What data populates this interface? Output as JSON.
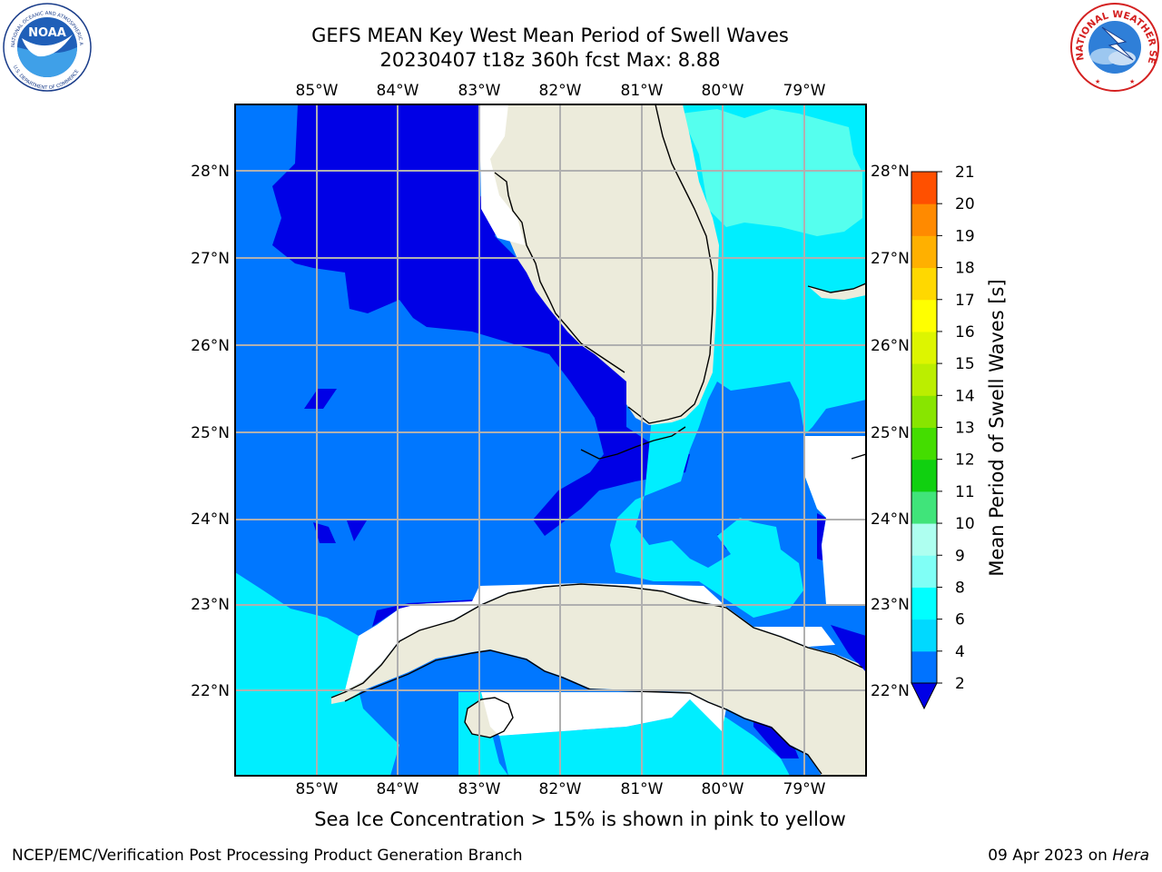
{
  "header": {
    "title_line1": "GEFS MEAN Key West Mean Period of Swell Waves",
    "title_line2": "20230407 t18z 360h fcst   Max: 8.88"
  },
  "map": {
    "lon_labels": [
      "85°W",
      "84°W",
      "83°W",
      "82°W",
      "81°W",
      "80°W",
      "79°W"
    ],
    "lat_labels": [
      "28°N",
      "27°N",
      "26°N",
      "25°N",
      "24°N",
      "23°N",
      "22°N"
    ],
    "colors": {
      "land": "#ecebdb",
      "ocean_deep": "#0000e6",
      "ocean_mid": "#0077ff",
      "ocean_light": "#00eeff",
      "ocean_pale": "#55ffee",
      "gridline": "#b0b0b0"
    }
  },
  "colorbar": {
    "label": "Mean Period of Swell Waves [s]",
    "ticks": [
      "2",
      "4",
      "6",
      "8",
      "9",
      "10",
      "11",
      "12",
      "13",
      "14",
      "15",
      "16",
      "17",
      "18",
      "19",
      "20",
      "21"
    ],
    "colors": [
      "#0073ff",
      "#00d9ff",
      "#00ffff",
      "#80fff6",
      "#aefff0",
      "#40e47a",
      "#10d010",
      "#44dd00",
      "#88e500",
      "#bbee00",
      "#ddf500",
      "#ffff00",
      "#ffd800",
      "#ffb000",
      "#ff8a00",
      "#ff5000",
      "#ff2000",
      "#ff0000"
    ],
    "extend_color": "#0000e6"
  },
  "footer": {
    "note": "Sea Ice Concentration > 15% is shown in pink to yellow",
    "credit_left": "NCEP/EMC/Verification Post Processing Product Generation Branch",
    "credit_date": "09 Apr 2023 on",
    "credit_host": "Hera"
  },
  "logos": {
    "noaa_text": "NOAA",
    "noaa_ring": "NATIONAL OCEANIC AND ATMOSPHERIC ADMINISTRATION",
    "noaa_ring_bottom": "U.S. DEPARTMENT OF COMMERCE",
    "nws_ring": "NATIONAL WEATHER SERVICE"
  }
}
